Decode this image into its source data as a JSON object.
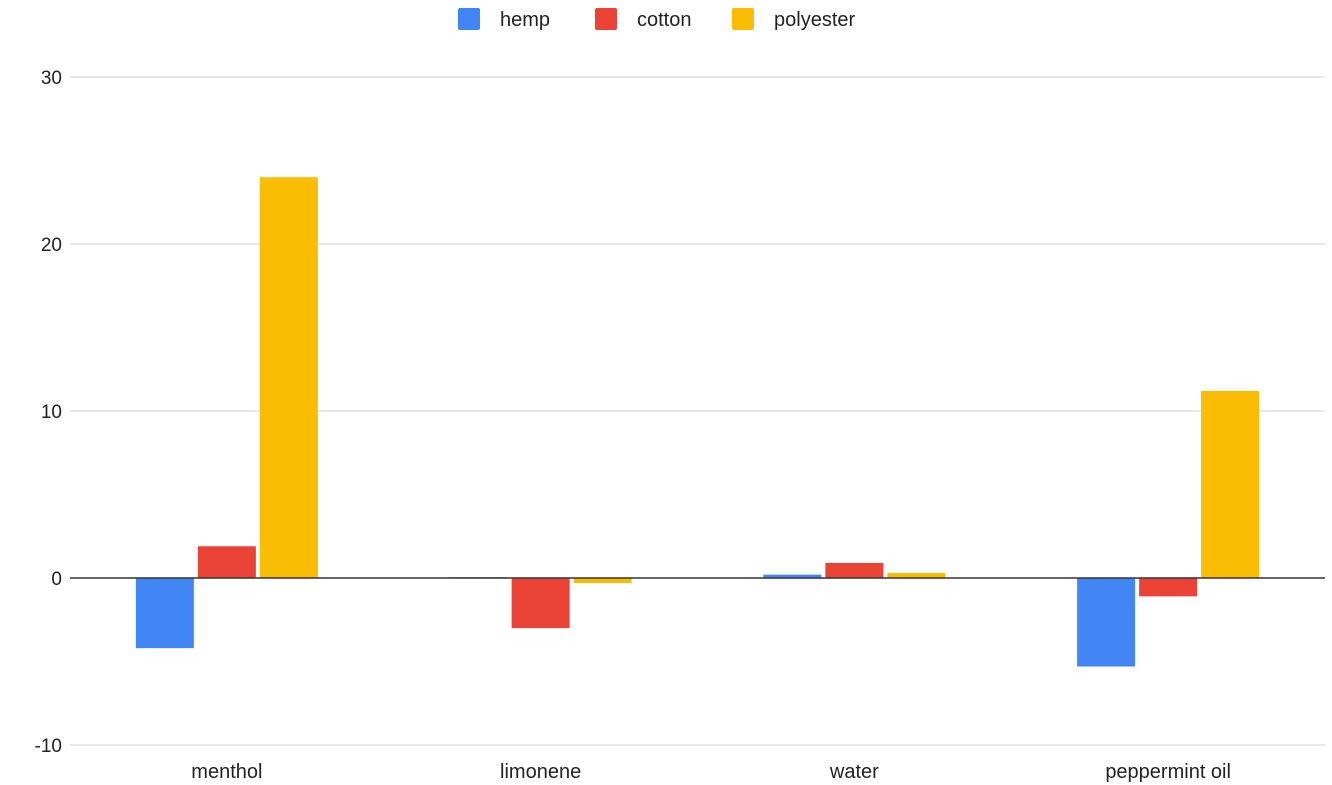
{
  "chart_data": {
    "type": "bar",
    "title": "",
    "xlabel": "",
    "ylabel": "",
    "categories": [
      "menthol",
      "limonene",
      "water",
      "peppermint oil"
    ],
    "series": [
      {
        "name": "hemp",
        "color": "#4285F4",
        "values": [
          -4.2,
          0.05,
          0.2,
          -5.3
        ]
      },
      {
        "name": "cotton",
        "color": "#EA4335",
        "values": [
          1.9,
          -3.0,
          0.9,
          -1.1
        ]
      },
      {
        "name": "polyester",
        "color": "#FBBC04",
        "values": [
          24.0,
          -0.3,
          0.3,
          11.2
        ]
      }
    ],
    "ylim": [
      -10,
      30
    ],
    "yticks": [
      -10,
      0,
      10,
      20,
      30
    ],
    "ytick_labels": [
      "-10",
      "0",
      "10",
      "20",
      "30"
    ],
    "grid": true,
    "legend_position": "top"
  }
}
